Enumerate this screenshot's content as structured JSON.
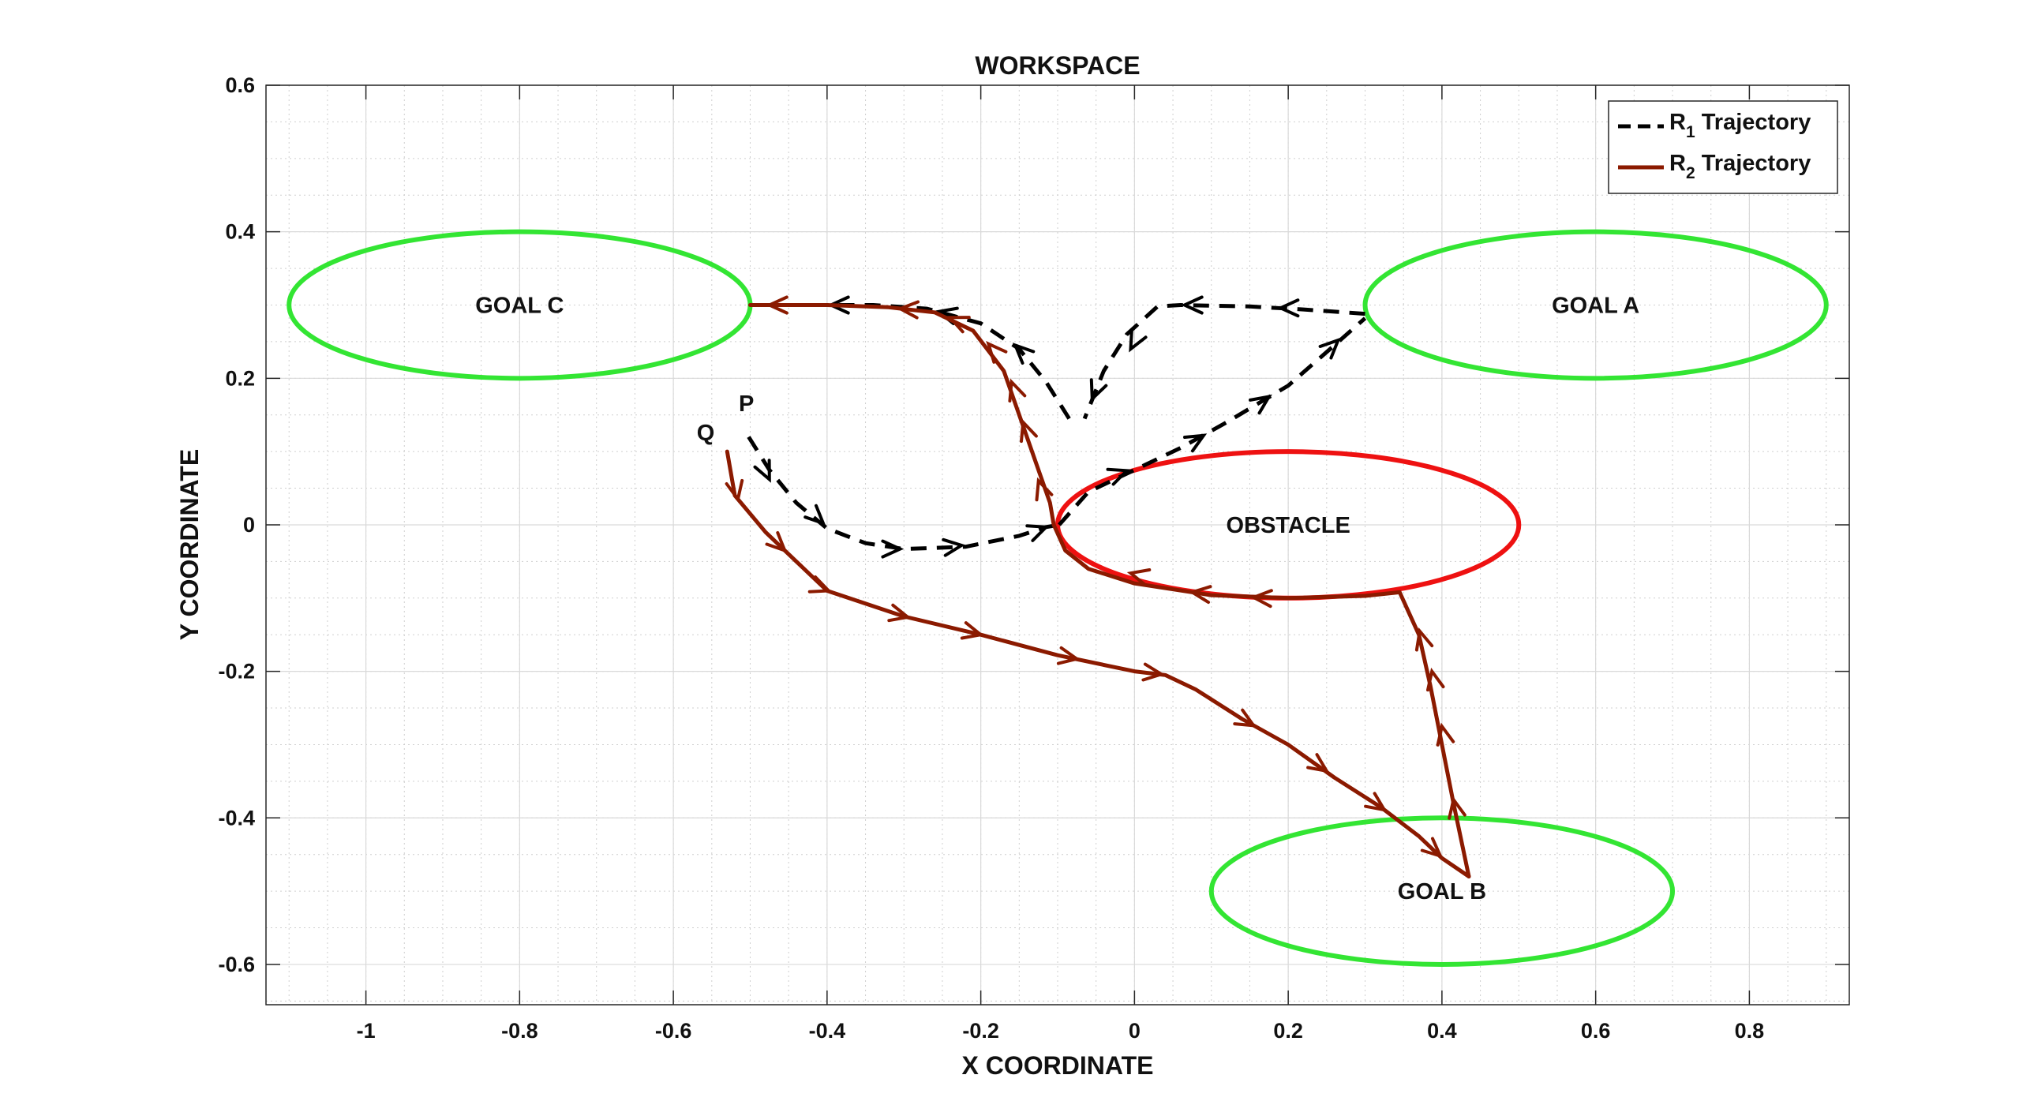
{
  "chart_data": {
    "type": "line",
    "title": "WORKSPACE",
    "xlabel": "X COORDINATE",
    "ylabel": "Y COORDINATE",
    "xlim": [
      -1.13,
      0.93
    ],
    "ylim": [
      -0.655,
      0.6
    ],
    "x_ticks": [
      -1,
      -0.8,
      -0.6,
      -0.4,
      -0.2,
      0,
      0.2,
      0.4,
      0.6,
      0.8
    ],
    "y_ticks": [
      -0.6,
      -0.4,
      -0.2,
      0,
      0.2,
      0.4,
      0.6
    ],
    "x_tick_labels": [
      "-1",
      "-0.8",
      "-0.6",
      "-0.4",
      "-0.2",
      "0",
      "0.2",
      "0.4",
      "0.6",
      "0.8"
    ],
    "y_tick_labels": [
      "-0.6",
      "-0.4",
      "-0.2",
      "0",
      "0.2",
      "0.4",
      "0.6"
    ],
    "grid": true,
    "minor_grid": true,
    "legend_position": "top-right",
    "regions": [
      {
        "label": "GOAL A",
        "cx": 0.6,
        "cy": 0.3,
        "rx": 0.3,
        "ry": 0.1,
        "color": "#33e533"
      },
      {
        "label": "GOAL B",
        "cx": 0.4,
        "cy": -0.5,
        "rx": 0.3,
        "ry": 0.1,
        "color": "#33e533"
      },
      {
        "label": "GOAL C",
        "cx": -0.8,
        "cy": 0.3,
        "rx": 0.3,
        "ry": 0.1,
        "color": "#33e533"
      },
      {
        "label": "OBSTACLE",
        "cx": 0.2,
        "cy": 0.0,
        "rx": 0.3,
        "ry": 0.1,
        "color": "#ee1111"
      }
    ],
    "point_labels": [
      {
        "text": "P",
        "x": -0.505,
        "y": 0.155
      },
      {
        "text": "Q",
        "x": -0.558,
        "y": 0.115
      }
    ],
    "series": [
      {
        "name": "R₁ Trajectory",
        "legend_main": "R",
        "legend_sub": "1",
        "legend_rest": " Trajectory",
        "color": "#000000",
        "style": "dashed",
        "segments": [
          [
            [
              -0.502,
              0.12
            ],
            [
              -0.475,
              0.075
            ],
            [
              -0.44,
              0.03
            ],
            [
              -0.4,
              -0.005
            ],
            [
              -0.35,
              -0.025
            ],
            [
              -0.3,
              -0.033
            ],
            [
              -0.22,
              -0.03
            ],
            [
              -0.15,
              -0.015
            ],
            [
              -0.115,
              -0.003
            ],
            [
              -0.098,
              0.0
            ]
          ],
          [
            [
              -0.098,
              0.0
            ],
            [
              -0.06,
              0.045
            ],
            [
              0.0,
              0.075
            ],
            [
              0.06,
              0.105
            ],
            [
              0.12,
              0.14
            ],
            [
              0.2,
              0.19
            ],
            [
              0.26,
              0.245
            ],
            [
              0.3,
              0.282
            ]
          ],
          [
            [
              0.3,
              0.288
            ],
            [
              0.22,
              0.294
            ],
            [
              0.15,
              0.298
            ],
            [
              0.06,
              0.3
            ],
            [
              0.03,
              0.298
            ],
            [
              -0.01,
              0.26
            ],
            [
              -0.04,
              0.21
            ],
            [
              -0.065,
              0.145
            ]
          ],
          [
            [
              -0.085,
              0.145
            ],
            [
              -0.115,
              0.195
            ],
            [
              -0.15,
              0.24
            ],
            [
              -0.2,
              0.275
            ],
            [
              -0.27,
              0.295
            ],
            [
              -0.34,
              0.3
            ],
            [
              -0.4,
              0.3
            ],
            [
              -0.5,
              0.3
            ]
          ]
        ],
        "arrows": [
          [
            -0.483,
            0.08,
            -0.475,
            0.062
          ],
          [
            -0.415,
            0.012,
            -0.405,
            0.002
          ],
          [
            -0.32,
            -0.033,
            -0.305,
            -0.033
          ],
          [
            -0.24,
            -0.03,
            -0.225,
            -0.028
          ],
          [
            -0.13,
            -0.009,
            -0.115,
            -0.003
          ],
          [
            -0.025,
            0.068,
            -0.01,
            0.074
          ],
          [
            0.075,
            0.113,
            0.09,
            0.122
          ],
          [
            0.16,
            0.164,
            0.175,
            0.175
          ],
          [
            0.25,
            0.237,
            0.265,
            0.252
          ],
          [
            0.205,
            0.296,
            0.19,
            0.296
          ],
          [
            0.08,
            0.3,
            0.065,
            0.3
          ],
          [
            0.0,
            0.25,
            -0.005,
            0.24
          ],
          [
            -0.05,
            0.185,
            -0.055,
            0.172
          ],
          [
            -0.145,
            0.235,
            -0.155,
            0.245
          ],
          [
            -0.24,
            0.287,
            -0.255,
            0.291
          ],
          [
            -0.38,
            0.3,
            -0.395,
            0.3
          ]
        ]
      },
      {
        "name": "R₂ Trajectory",
        "legend_main": "R",
        "legend_sub": "2",
        "legend_rest": " Trajectory",
        "color": "#8b1a00",
        "style": "solid",
        "segments": [
          [
            [
              -0.53,
              0.1
            ],
            [
              -0.52,
              0.04
            ],
            [
              -0.48,
              -0.01
            ],
            [
              -0.44,
              -0.05
            ],
            [
              -0.4,
              -0.09
            ],
            [
              -0.3,
              -0.125
            ],
            [
              -0.2,
              -0.15
            ],
            [
              -0.1,
              -0.178
            ],
            [
              0.0,
              -0.2
            ],
            [
              0.04,
              -0.205
            ],
            [
              0.08,
              -0.225
            ],
            [
              0.14,
              -0.265
            ],
            [
              0.2,
              -0.3
            ],
            [
              0.26,
              -0.345
            ],
            [
              0.32,
              -0.385
            ],
            [
              0.37,
              -0.425
            ],
            [
              0.4,
              -0.455
            ],
            [
              0.435,
              -0.48
            ]
          ],
          [
            [
              0.435,
              -0.48
            ],
            [
              0.415,
              -0.38
            ],
            [
              0.4,
              -0.3
            ],
            [
              0.385,
              -0.22
            ],
            [
              0.37,
              -0.15
            ],
            [
              0.345,
              -0.092
            ]
          ],
          [
            [
              0.345,
              -0.092
            ],
            [
              0.3,
              -0.097
            ],
            [
              0.2,
              -0.1
            ],
            [
              0.1,
              -0.096
            ],
            [
              0.0,
              -0.08
            ],
            [
              -0.06,
              -0.06
            ],
            [
              -0.09,
              -0.035
            ],
            [
              -0.105,
              0.0
            ]
          ],
          [
            [
              -0.105,
              0.0
            ],
            [
              -0.11,
              0.03
            ],
            [
              -0.13,
              0.09
            ],
            [
              -0.15,
              0.15
            ],
            [
              -0.17,
              0.21
            ],
            [
              -0.21,
              0.265
            ],
            [
              -0.26,
              0.29
            ],
            [
              -0.32,
              0.297
            ],
            [
              -0.4,
              0.3
            ],
            [
              -0.5,
              0.3
            ]
          ]
        ],
        "arrows": [
          [
            -0.52,
            0.055,
            -0.516,
            0.035
          ],
          [
            -0.465,
            -0.025,
            -0.455,
            -0.035
          ],
          [
            -0.41,
            -0.085,
            -0.398,
            -0.09
          ],
          [
            -0.31,
            -0.122,
            -0.295,
            -0.126
          ],
          [
            -0.215,
            -0.146,
            -0.2,
            -0.15
          ],
          [
            -0.09,
            -0.18,
            -0.075,
            -0.183
          ],
          [
            0.02,
            -0.202,
            0.035,
            -0.204
          ],
          [
            0.14,
            -0.265,
            0.155,
            -0.274
          ],
          [
            0.235,
            -0.325,
            0.25,
            -0.336
          ],
          [
            0.31,
            -0.378,
            0.325,
            -0.389
          ],
          [
            0.385,
            -0.44,
            0.398,
            -0.452
          ],
          [
            0.418,
            -0.39,
            0.415,
            -0.375
          ],
          [
            0.403,
            -0.29,
            0.4,
            -0.275
          ],
          [
            0.39,
            -0.215,
            0.387,
            -0.2
          ],
          [
            0.375,
            -0.16,
            0.371,
            -0.145
          ],
          [
            0.17,
            -0.1,
            0.155,
            -0.099
          ],
          [
            0.09,
            -0.094,
            0.075,
            -0.092
          ],
          [
            0.01,
            -0.07,
            -0.005,
            -0.066
          ],
          [
            -0.12,
            0.045,
            -0.125,
            0.06
          ],
          [
            -0.14,
            0.125,
            -0.145,
            0.14
          ],
          [
            -0.155,
            0.18,
            -0.16,
            0.195
          ],
          [
            -0.18,
            0.235,
            -0.19,
            0.247
          ],
          [
            -0.225,
            0.276,
            -0.24,
            0.283
          ],
          [
            -0.29,
            0.294,
            -0.305,
            0.295
          ],
          [
            -0.46,
            0.3,
            -0.475,
            0.3
          ]
        ]
      }
    ]
  }
}
